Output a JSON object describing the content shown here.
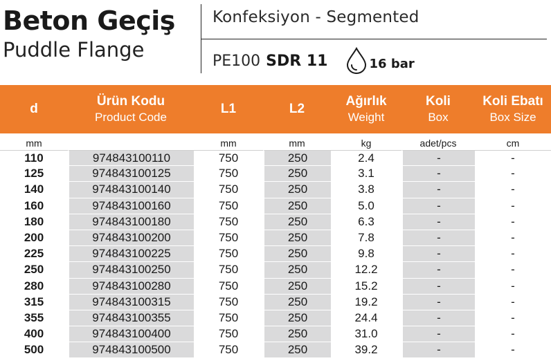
{
  "header": {
    "title_tr": "Beton Geçiş",
    "title_en": "Puddle Flange",
    "subtitle": "Konfeksiyon - Segmented",
    "material": "PE100",
    "sdr": "SDR 11",
    "pressure_icon": "water-drop-icon",
    "pressure": "16 bar"
  },
  "colors": {
    "header_bg": "#ee7d2b",
    "shade": "#dadadb"
  },
  "table": {
    "columns": [
      {
        "main": "d",
        "sub": "",
        "unit": "mm"
      },
      {
        "main": "Ürün Kodu",
        "sub": "Product Code",
        "unit": ""
      },
      {
        "main": "L1",
        "sub": "",
        "unit": "mm"
      },
      {
        "main": "L2",
        "sub": "",
        "unit": "mm"
      },
      {
        "main": "Ağırlık",
        "sub": "Weight",
        "unit": "kg"
      },
      {
        "main": "Koli",
        "sub": "Box",
        "unit": "adet/pcs"
      },
      {
        "main": "Koli Ebatı",
        "sub": "Box Size",
        "unit": "cm"
      }
    ],
    "rows": [
      [
        "110",
        "974843100110",
        "750",
        "250",
        "2.4",
        "-",
        "-"
      ],
      [
        "125",
        "974843100125",
        "750",
        "250",
        "3.1",
        "-",
        "-"
      ],
      [
        "140",
        "974843100140",
        "750",
        "250",
        "3.8",
        "-",
        "-"
      ],
      [
        "160",
        "974843100160",
        "750",
        "250",
        "5.0",
        "-",
        "-"
      ],
      [
        "180",
        "974843100180",
        "750",
        "250",
        "6.3",
        "-",
        "-"
      ],
      [
        "200",
        "974843100200",
        "750",
        "250",
        "7.8",
        "-",
        "-"
      ],
      [
        "225",
        "974843100225",
        "750",
        "250",
        "9.8",
        "-",
        "-"
      ],
      [
        "250",
        "974843100250",
        "750",
        "250",
        "12.2",
        "-",
        "-"
      ],
      [
        "280",
        "974843100280",
        "750",
        "250",
        "15.2",
        "-",
        "-"
      ],
      [
        "315",
        "974843100315",
        "750",
        "250",
        "19.2",
        "-",
        "-"
      ],
      [
        "355",
        "974843100355",
        "750",
        "250",
        "24.4",
        "-",
        "-"
      ],
      [
        "400",
        "974843100400",
        "750",
        "250",
        "31.0",
        "-",
        "-"
      ],
      [
        "500",
        "974843100500",
        "750",
        "250",
        "39.2",
        "-",
        "-"
      ]
    ]
  }
}
